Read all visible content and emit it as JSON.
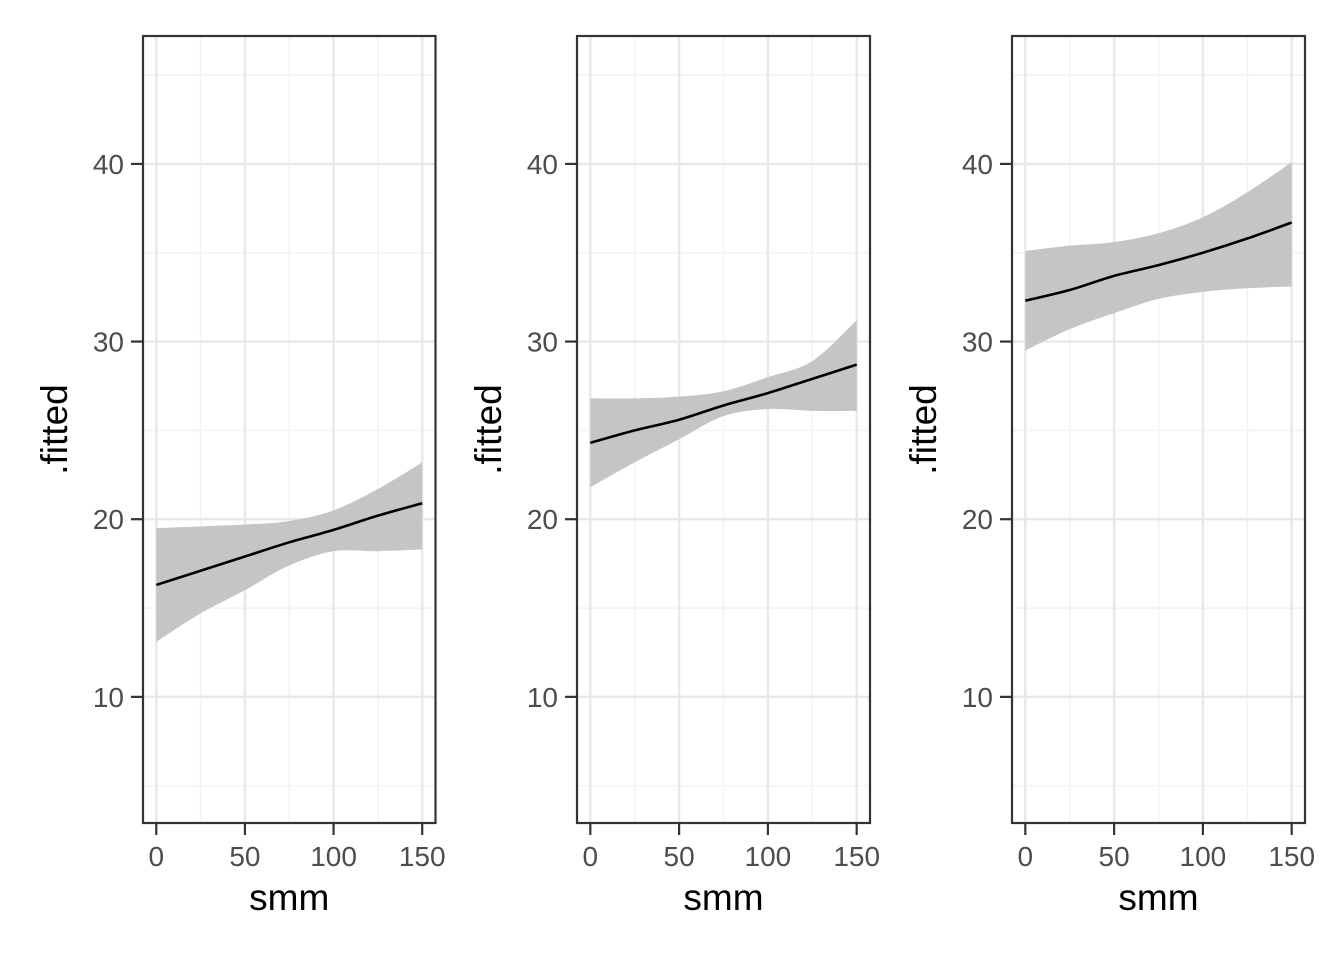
{
  "figure": {
    "background": "#ffffff",
    "description": "Three side-by-side panels of fitted regression lines with confidence ribbons"
  },
  "style": {
    "panel_background": "#ffffff",
    "panel_border": "#333333",
    "grid_major": "#e8e8e8",
    "grid_minor": "#f3f3f3",
    "ribbon_fill": "#c5c5c5",
    "line_color": "#000000",
    "tick_color": "#333333",
    "tick_label_color": "#4d4d4d",
    "axis_title_color": "#000000"
  },
  "chart_data": [
    {
      "type": "line",
      "title": "",
      "xlabel": "smm",
      "ylabel": ".fitted",
      "x": [
        0,
        25,
        50,
        75,
        100,
        125,
        150
      ],
      "series": [
        {
          "name": "fitted",
          "values": [
            16.3,
            17.1,
            17.9,
            18.7,
            19.4,
            20.2,
            20.9
          ]
        },
        {
          "name": "ci_upper",
          "values": [
            19.5,
            19.6,
            19.7,
            19.9,
            20.5,
            21.7,
            23.2
          ]
        },
        {
          "name": "ci_lower",
          "values": [
            13.1,
            14.7,
            16.0,
            17.4,
            18.2,
            18.2,
            18.3
          ]
        }
      ],
      "xlim": [
        -7.5,
        157.5
      ],
      "ylim": [
        2.9,
        47.2
      ],
      "x_ticks": [
        0,
        50,
        100,
        150
      ],
      "y_ticks": [
        10,
        20,
        30,
        40
      ],
      "x_minor": [
        25,
        75,
        125
      ],
      "y_minor": [
        5,
        15,
        25,
        35,
        45
      ],
      "grid": true,
      "legend": "none"
    },
    {
      "type": "line",
      "title": "",
      "xlabel": "smm",
      "ylabel": ".fitted",
      "x": [
        0,
        25,
        50,
        75,
        100,
        125,
        150
      ],
      "series": [
        {
          "name": "fitted",
          "values": [
            24.3,
            25.0,
            25.6,
            26.4,
            27.1,
            27.9,
            28.7
          ]
        },
        {
          "name": "ci_upper",
          "values": [
            26.8,
            26.8,
            26.9,
            27.2,
            28.0,
            28.9,
            31.2
          ]
        },
        {
          "name": "ci_lower",
          "values": [
            21.8,
            23.2,
            24.5,
            25.8,
            26.2,
            26.1,
            26.1
          ]
        }
      ],
      "xlim": [
        -7.5,
        157.5
      ],
      "ylim": [
        2.9,
        47.2
      ],
      "x_ticks": [
        0,
        50,
        100,
        150
      ],
      "y_ticks": [
        10,
        20,
        30,
        40
      ],
      "x_minor": [
        25,
        75,
        125
      ],
      "y_minor": [
        5,
        15,
        25,
        35,
        45
      ],
      "grid": true,
      "legend": "none"
    },
    {
      "type": "line",
      "title": "",
      "xlabel": "smm",
      "ylabel": ".fitted",
      "x": [
        0,
        25,
        50,
        75,
        100,
        125,
        150
      ],
      "series": [
        {
          "name": "fitted",
          "values": [
            32.3,
            32.9,
            33.7,
            34.3,
            35.0,
            35.8,
            36.7
          ]
        },
        {
          "name": "ci_upper",
          "values": [
            35.1,
            35.4,
            35.6,
            36.1,
            37.0,
            38.4,
            40.1
          ]
        },
        {
          "name": "ci_lower",
          "values": [
            29.5,
            30.7,
            31.6,
            32.4,
            32.8,
            33.0,
            33.1
          ]
        }
      ],
      "xlim": [
        -7.5,
        157.5
      ],
      "ylim": [
        2.9,
        47.2
      ],
      "x_ticks": [
        0,
        50,
        100,
        150
      ],
      "y_ticks": [
        10,
        20,
        30,
        40
      ],
      "x_minor": [
        25,
        75,
        125
      ],
      "y_minor": [
        5,
        15,
        25,
        35,
        45
      ],
      "grid": true,
      "legend": "none"
    }
  ]
}
